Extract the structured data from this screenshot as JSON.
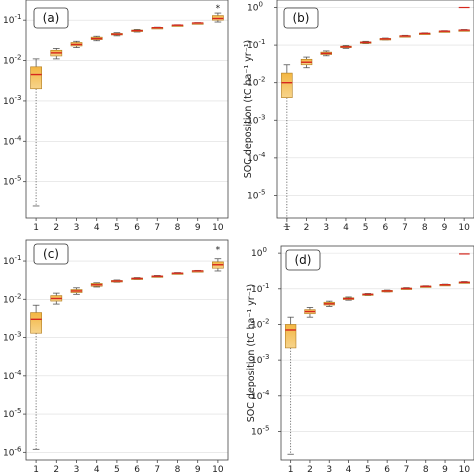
{
  "chart_data": [
    {
      "panel": "(a)",
      "type": "box",
      "categories": [
        "1",
        "2",
        "3",
        "4",
        "5",
        "6",
        "7",
        "8",
        "9",
        "10"
      ],
      "yscale": "log",
      "ylim_exp": [
        -5.9,
        -0.5
      ],
      "yticks": [
        {
          "exp": -1,
          "sup": "-1"
        },
        {
          "exp": -2,
          "sup": "-2"
        },
        {
          "exp": -3,
          "sup": "-3"
        },
        {
          "exp": -4,
          "sup": "-4"
        },
        {
          "exp": -5,
          "sup": "-5"
        }
      ],
      "ylabel": "",
      "boxes": [
        {
          "cat": "1",
          "whislo": 2.5e-06,
          "q1": 0.002,
          "med": 0.0045,
          "q3": 0.007,
          "whishi": 0.011,
          "fliers": []
        },
        {
          "cat": "2",
          "whislo": 0.011,
          "q1": 0.013,
          "med": 0.0155,
          "q3": 0.018,
          "whishi": 0.02,
          "fliers": []
        },
        {
          "cat": "3",
          "whislo": 0.021,
          "q1": 0.023,
          "med": 0.025,
          "q3": 0.028,
          "whishi": 0.03,
          "fliers": []
        },
        {
          "cat": "4",
          "whislo": 0.031,
          "q1": 0.033,
          "med": 0.035,
          "q3": 0.038,
          "whishi": 0.04,
          "fliers": []
        },
        {
          "cat": "5",
          "whislo": 0.041,
          "q1": 0.043,
          "med": 0.045,
          "q3": 0.047,
          "whishi": 0.049,
          "fliers": []
        },
        {
          "cat": "6",
          "whislo": 0.051,
          "q1": 0.053,
          "med": 0.055,
          "q3": 0.057,
          "whishi": 0.059,
          "fliers": []
        },
        {
          "cat": "7",
          "whislo": 0.063,
          "q1": 0.064,
          "med": 0.065,
          "q3": 0.066,
          "whishi": 0.067,
          "fliers": []
        },
        {
          "cat": "8",
          "whislo": 0.073,
          "q1": 0.074,
          "med": 0.075,
          "q3": 0.076,
          "whishi": 0.077,
          "fliers": []
        },
        {
          "cat": "9",
          "whislo": 0.083,
          "q1": 0.084,
          "med": 0.085,
          "q3": 0.086,
          "whishi": 0.087,
          "fliers": []
        },
        {
          "cat": "10",
          "whislo": 0.09,
          "q1": 0.1,
          "med": 0.11,
          "q3": 0.13,
          "whishi": 0.15,
          "fliers": [
            0.2
          ]
        }
      ]
    },
    {
      "panel": "(b)",
      "type": "box",
      "categories": [
        "1",
        "2",
        "3",
        "4",
        "5",
        "6",
        "7",
        "8",
        "9",
        "10"
      ],
      "yscale": "log",
      "ylim_exp": [
        -5.6,
        0.2
      ],
      "yticks": [
        {
          "exp": 0,
          "sup": "0"
        },
        {
          "exp": -1,
          "sup": "-1"
        },
        {
          "exp": -2,
          "sup": "-2"
        },
        {
          "exp": -3,
          "sup": "-3"
        },
        {
          "exp": -4,
          "sup": "-4"
        },
        {
          "exp": -5,
          "sup": "-5"
        }
      ],
      "ylabel": "SOC deposition (tC ha⁻¹ yr⁻¹)",
      "boxes": [
        {
          "cat": "1",
          "whislo": 1.5e-06,
          "q1": 0.004,
          "med": 0.01,
          "q3": 0.018,
          "whishi": 0.03,
          "fliers": []
        },
        {
          "cat": "2",
          "whislo": 0.025,
          "q1": 0.03,
          "med": 0.035,
          "q3": 0.042,
          "whishi": 0.048,
          "fliers": []
        },
        {
          "cat": "3",
          "whislo": 0.052,
          "q1": 0.056,
          "med": 0.06,
          "q3": 0.065,
          "whishi": 0.07,
          "fliers": []
        },
        {
          "cat": "4",
          "whislo": 0.082,
          "q1": 0.086,
          "med": 0.09,
          "q3": 0.094,
          "whishi": 0.098,
          "fliers": []
        },
        {
          "cat": "5",
          "whislo": 0.11,
          "q1": 0.114,
          "med": 0.118,
          "q3": 0.122,
          "whishi": 0.126,
          "fliers": []
        },
        {
          "cat": "6",
          "whislo": 0.138,
          "q1": 0.142,
          "med": 0.146,
          "q3": 0.15,
          "whishi": 0.154,
          "fliers": []
        },
        {
          "cat": "7",
          "whislo": 0.166,
          "q1": 0.17,
          "med": 0.174,
          "q3": 0.178,
          "whishi": 0.182,
          "fliers": []
        },
        {
          "cat": "8",
          "whislo": 0.196,
          "q1": 0.2,
          "med": 0.204,
          "q3": 0.208,
          "whishi": 0.212,
          "fliers": []
        },
        {
          "cat": "9",
          "whislo": 0.226,
          "q1": 0.23,
          "med": 0.234,
          "q3": 0.238,
          "whishi": 0.242,
          "fliers": []
        },
        {
          "cat": "10",
          "whislo": 0.24,
          "q1": 0.245,
          "med": 0.25,
          "q3": 0.255,
          "whishi": 0.26,
          "fliers": [
            1.0
          ]
        }
      ]
    },
    {
      "panel": "(c)",
      "type": "box",
      "categories": [
        "1",
        "2",
        "3",
        "4",
        "5",
        "6",
        "7",
        "8",
        "9",
        "10"
      ],
      "yscale": "log",
      "ylim_exp": [
        -6.2,
        -0.45
      ],
      "yticks": [
        {
          "exp": -1,
          "sup": "-1"
        },
        {
          "exp": -2,
          "sup": "-2"
        },
        {
          "exp": -3,
          "sup": "-3"
        },
        {
          "exp": -4,
          "sup": "-4"
        },
        {
          "exp": -5,
          "sup": "-5"
        },
        {
          "exp": -6,
          "sup": "-6"
        }
      ],
      "ylabel": "",
      "boxes": [
        {
          "cat": "1",
          "whislo": 1.2e-06,
          "q1": 0.0013,
          "med": 0.003,
          "q3": 0.0045,
          "whishi": 0.007,
          "fliers": []
        },
        {
          "cat": "2",
          "whislo": 0.0075,
          "q1": 0.009,
          "med": 0.0105,
          "q3": 0.0125,
          "whishi": 0.0145,
          "fliers": []
        },
        {
          "cat": "3",
          "whislo": 0.0135,
          "q1": 0.015,
          "med": 0.0165,
          "q3": 0.018,
          "whishi": 0.02,
          "fliers": []
        },
        {
          "cat": "4",
          "whislo": 0.021,
          "q1": 0.022,
          "med": 0.024,
          "q3": 0.026,
          "whishi": 0.027,
          "fliers": []
        },
        {
          "cat": "5",
          "whislo": 0.028,
          "q1": 0.029,
          "med": 0.03,
          "q3": 0.031,
          "whishi": 0.032,
          "fliers": []
        },
        {
          "cat": "6",
          "whislo": 0.033,
          "q1": 0.034,
          "med": 0.035,
          "q3": 0.036,
          "whishi": 0.037,
          "fliers": []
        },
        {
          "cat": "7",
          "whislo": 0.038,
          "q1": 0.039,
          "med": 0.04,
          "q3": 0.041,
          "whishi": 0.042,
          "fliers": []
        },
        {
          "cat": "8",
          "whislo": 0.046,
          "q1": 0.047,
          "med": 0.048,
          "q3": 0.049,
          "whishi": 0.05,
          "fliers": []
        },
        {
          "cat": "9",
          "whislo": 0.053,
          "q1": 0.054,
          "med": 0.055,
          "q3": 0.056,
          "whishi": 0.057,
          "fliers": []
        },
        {
          "cat": "10",
          "whislo": 0.055,
          "q1": 0.065,
          "med": 0.08,
          "q3": 0.095,
          "whishi": 0.115,
          "fliers": [
            0.2
          ]
        }
      ]
    },
    {
      "panel": "(d)",
      "type": "box",
      "categories": [
        "1",
        "2",
        "3",
        "4",
        "5",
        "6",
        "7",
        "8",
        "9",
        "10"
      ],
      "yscale": "log",
      "ylim_exp": [
        -5.8,
        0.2
      ],
      "yticks": [
        {
          "exp": 0,
          "sup": "0"
        },
        {
          "exp": -1,
          "sup": "-1"
        },
        {
          "exp": -2,
          "sup": "-2"
        },
        {
          "exp": -3,
          "sup": "-3"
        },
        {
          "exp": -4,
          "sup": "-4"
        },
        {
          "exp": -5,
          "sup": "-5"
        }
      ],
      "ylabel": "SOC deposition (tC ha⁻¹ yr⁻¹)",
      "boxes": [
        {
          "cat": "1",
          "whislo": 2.3e-06,
          "q1": 0.0022,
          "med": 0.007,
          "q3": 0.01,
          "whishi": 0.016,
          "fliers": []
        },
        {
          "cat": "2",
          "whislo": 0.016,
          "q1": 0.02,
          "med": 0.023,
          "q3": 0.026,
          "whishi": 0.03,
          "fliers": []
        },
        {
          "cat": "3",
          "whislo": 0.032,
          "q1": 0.035,
          "med": 0.038,
          "q3": 0.042,
          "whishi": 0.045,
          "fliers": []
        },
        {
          "cat": "4",
          "whislo": 0.048,
          "q1": 0.05,
          "med": 0.053,
          "q3": 0.056,
          "whishi": 0.059,
          "fliers": []
        },
        {
          "cat": "5",
          "whislo": 0.065,
          "q1": 0.067,
          "med": 0.07,
          "q3": 0.072,
          "whishi": 0.074,
          "fliers": []
        },
        {
          "cat": "6",
          "whislo": 0.082,
          "q1": 0.084,
          "med": 0.087,
          "q3": 0.09,
          "whishi": 0.092,
          "fliers": []
        },
        {
          "cat": "7",
          "whislo": 0.097,
          "q1": 0.099,
          "med": 0.102,
          "q3": 0.105,
          "whishi": 0.108,
          "fliers": []
        },
        {
          "cat": "8",
          "whislo": 0.112,
          "q1": 0.114,
          "med": 0.117,
          "q3": 0.12,
          "whishi": 0.122,
          "fliers": []
        },
        {
          "cat": "9",
          "whislo": 0.125,
          "q1": 0.127,
          "med": 0.13,
          "q3": 0.133,
          "whishi": 0.135,
          "fliers": []
        },
        {
          "cat": "10",
          "whislo": 0.145,
          "q1": 0.148,
          "med": 0.152,
          "q3": 0.156,
          "whishi": 0.16,
          "fliers": [
            0.95
          ]
        }
      ]
    }
  ],
  "colors": {
    "box_fill_top": "#f3b642",
    "box_fill_bottom": "#f7d48c",
    "box_edge": "#b07a1c",
    "median": "#d6281e",
    "whisker": "#555555",
    "grid": "#dedede",
    "frame": "#444444"
  }
}
